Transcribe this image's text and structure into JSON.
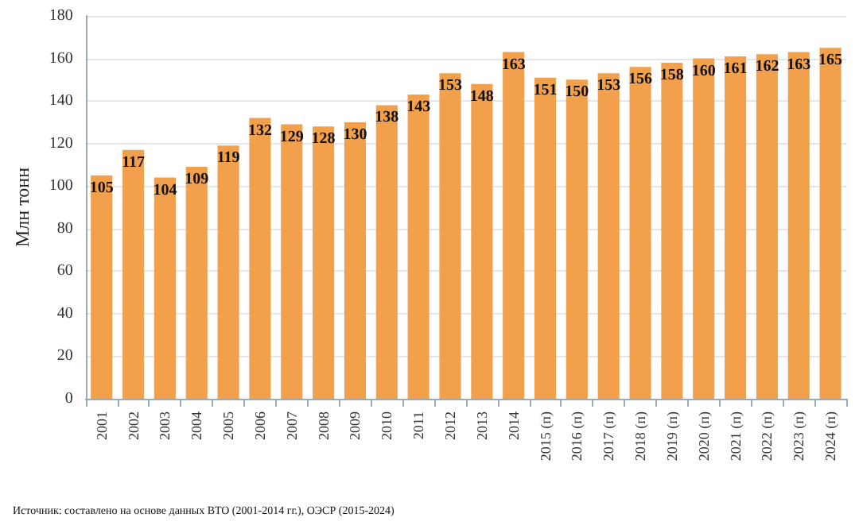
{
  "chart_data": {
    "type": "bar",
    "ylabel": "Млн тонн",
    "categories": [
      "2001",
      "2002",
      "2003",
      "2004",
      "2005",
      "2006",
      "2007",
      "2008",
      "2009",
      "2010",
      "2011",
      "2012",
      "2013",
      "2014",
      "2015 (п)",
      "2016 (п)",
      "2017 (п)",
      "2018 (п)",
      "2019 (п)",
      "2020 (п)",
      "2021 (п)",
      "2022 (п)",
      "2023 (п)",
      "2024 (п)"
    ],
    "values": [
      105,
      117,
      104,
      109,
      119,
      132,
      129,
      128,
      130,
      138,
      143,
      153,
      148,
      163,
      151,
      150,
      153,
      156,
      158,
      160,
      161,
      162,
      163,
      165
    ],
    "color": "#f2a04c",
    "ylim": [
      0,
      180
    ],
    "yticks": [
      0,
      20,
      40,
      60,
      80,
      100,
      120,
      140,
      160,
      180
    ],
    "grid": "y",
    "data_labels": true,
    "annotations": [
      "Источник: составлено на основе данных ВТО (2001-2014 гг.), ОЭСР (2015-2024)"
    ]
  }
}
